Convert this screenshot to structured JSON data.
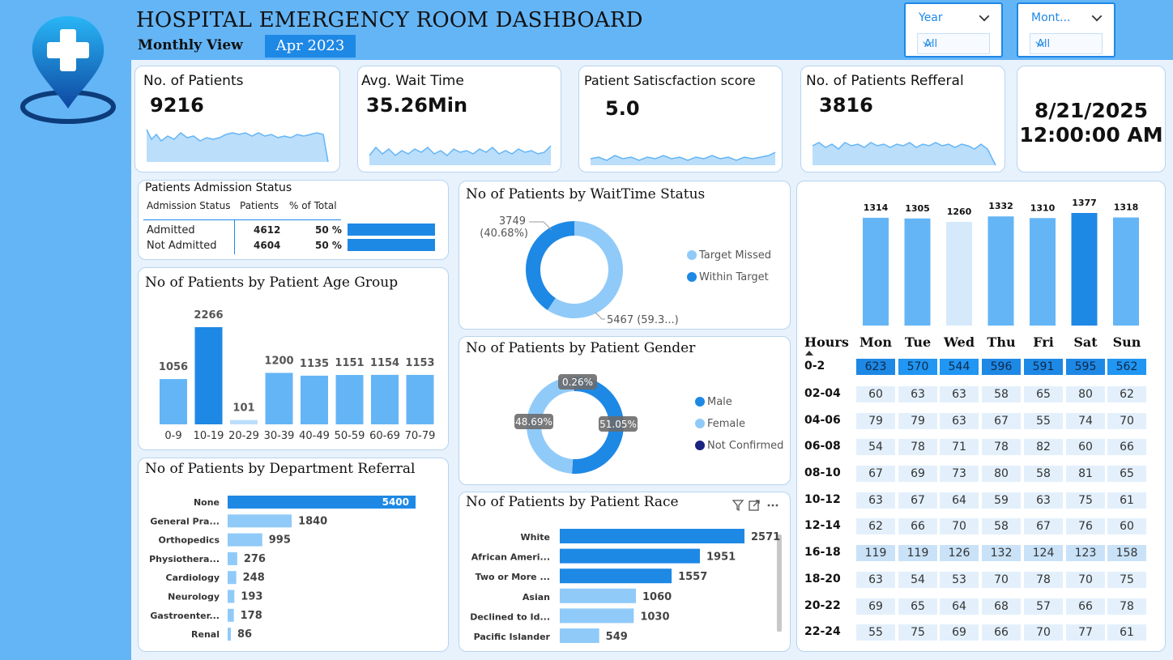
{
  "header": {
    "title": "HOSPITAL EMERGENCY ROOM DASHBOARD",
    "subtitle": "Monthly View",
    "period": "Apr 2023"
  },
  "slicers": [
    {
      "label": "Year",
      "value": "All"
    },
    {
      "label": "Mont...",
      "value": "All"
    }
  ],
  "kpis": {
    "patients": {
      "title": "No. of Patients",
      "value": "9216"
    },
    "wait": {
      "title": "Avg. Wait Time",
      "value": "35.26Min"
    },
    "satisfaction": {
      "title": "Patient Satiscfaction score",
      "value": "5.0"
    },
    "referral": {
      "title": "No. of Patients Refferal",
      "value": "3816"
    },
    "datetime": {
      "date": "8/21/2025",
      "time": "12:00:00 AM"
    }
  },
  "admission": {
    "title": "Patients Admission Status",
    "headers": [
      "Admission Status",
      "Patients",
      "% of Total"
    ],
    "rows": [
      {
        "status": "Admitted",
        "patients": "4612",
        "pct": "50 %",
        "fraction": 0.5
      },
      {
        "status": "Not Admitted",
        "patients": "4604",
        "pct": "50 %",
        "fraction": 0.5
      }
    ]
  },
  "colors": {
    "accent": "#1e88e5",
    "light": "#64b5f6",
    "pale": "#90caf9",
    "palest": "#d6e9fb",
    "dark": "#1a237e"
  },
  "chart_data": [
    {
      "type": "bar",
      "title": "No of Patients by Patient Age Group",
      "categories": [
        "0-9",
        "10-19",
        "20-29",
        "30-39",
        "40-49",
        "50-59",
        "60-69",
        "70-79"
      ],
      "values": [
        1056,
        2266,
        101,
        1200,
        1135,
        1151,
        1154,
        1153
      ]
    },
    {
      "type": "bar",
      "title": "No of Patients by Department Referral",
      "orientation": "horizontal",
      "categories": [
        "None",
        "General Pra...",
        "Orthopedics",
        "Physiothera...",
        "Cardiology",
        "Neurology",
        "Gastroenter...",
        "Renal"
      ],
      "values": [
        5400,
        1840,
        995,
        276,
        248,
        193,
        178,
        86
      ]
    },
    {
      "type": "pie",
      "title": "No of Patients by WaitTime Status",
      "slices": [
        {
          "name": "Target Missed",
          "value": 5467,
          "label": "5467 (59.3...)"
        },
        {
          "name": "Within Target",
          "value": 3749,
          "label": "3749",
          "label2": "(40.68%)"
        }
      ]
    },
    {
      "type": "pie",
      "title": "No of Patients by Patient Gender",
      "slices": [
        {
          "name": "Male",
          "value": 51.05,
          "label": "51.05%"
        },
        {
          "name": "Female",
          "value": 48.69,
          "label": "48.69%"
        },
        {
          "name": "Not Confirmed",
          "value": 0.26,
          "label": "0.26%"
        }
      ]
    },
    {
      "type": "bar",
      "title": "No of Patients by Patient Race",
      "orientation": "horizontal",
      "categories": [
        "White",
        "African Ameri...",
        "Two or More ...",
        "Asian",
        "Declined to Id...",
        "Pacific Islander"
      ],
      "values": [
        2571,
        1951,
        1557,
        1060,
        1030,
        549
      ]
    },
    {
      "type": "bar",
      "title": "",
      "categories": [
        "Mon",
        "Tue",
        "Wed",
        "Thu",
        "Fri",
        "Sat",
        "Sun"
      ],
      "values": [
        1314,
        1305,
        1260,
        1332,
        1310,
        1377,
        1318
      ]
    },
    {
      "type": "heatmap",
      "row_header": "Hours",
      "columns": [
        "Mon",
        "Tue",
        "Wed",
        "Thu",
        "Fri",
        "Sat",
        "Sun"
      ],
      "rows": [
        "0-2",
        "02-04",
        "04-06",
        "06-08",
        "08-10",
        "10-12",
        "12-14",
        "16-18",
        "18-20",
        "20-22",
        "22-24"
      ],
      "values": [
        [
          623,
          570,
          544,
          596,
          591,
          595,
          562
        ],
        [
          60,
          63,
          63,
          58,
          65,
          80,
          62
        ],
        [
          79,
          79,
          63,
          67,
          55,
          74,
          70
        ],
        [
          54,
          78,
          71,
          78,
          82,
          60,
          66
        ],
        [
          67,
          69,
          73,
          80,
          58,
          81,
          65
        ],
        [
          63,
          67,
          64,
          59,
          63,
          75,
          61
        ],
        [
          62,
          66,
          70,
          58,
          67,
          76,
          60
        ],
        [
          119,
          119,
          126,
          132,
          124,
          123,
          158
        ],
        [
          63,
          54,
          53,
          70,
          78,
          70,
          75
        ],
        [
          69,
          65,
          64,
          68,
          57,
          66,
          78
        ],
        [
          55,
          75,
          69,
          66,
          70,
          77,
          61
        ]
      ]
    }
  ]
}
